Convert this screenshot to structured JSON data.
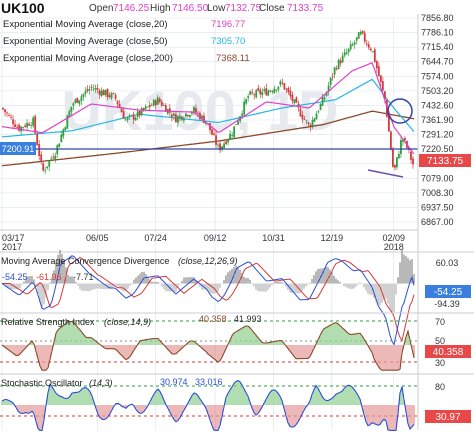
{
  "colors": {
    "up": "#2e9e3e",
    "down": "#d23b3b",
    "ema20": "#e040c8",
    "ema50": "#22b8e0",
    "ema200": "#8b4a2a",
    "macd_line": "#2a4fd8",
    "signal_line": "#d23b3b",
    "rsi_line": "#8b4a2a",
    "stoch_line": "#2a4fd8",
    "grid": "#dde3ea",
    "hline": "#3344aa",
    "badge_blue": "#3a7fe0",
    "badge_red": "#e84848"
  },
  "header": {
    "symbol": "UK100",
    "open_label": "Open",
    "open_value": "7146.25",
    "high_label": "High",
    "high_value": "7146.50",
    "low_label": "Low",
    "low_value": "7132.75",
    "close_label": "Close",
    "close_value": "7133.75"
  },
  "indicators": [
    {
      "label": "Exponential Moving Average (close,20)",
      "value": "7196.77",
      "color": "#e040c8"
    },
    {
      "label": "Exponential Moving Average (close,50)",
      "value": "7305.70",
      "color": "#22b8e0"
    },
    {
      "label": "Exponential Moving Average (close,200)",
      "value": "7368.11",
      "color": "#8b4a2a"
    }
  ],
  "watermark": "UK100, 1D",
  "price_axis_labels": [
    "7856.80",
    "7786.10",
    "7715.40",
    "7644.70",
    "7574.00",
    "7503.20",
    "7432.60",
    "7361.90",
    "7291.20",
    "7220.50",
    "7149.80",
    "7079.00",
    "7008.30",
    "6937.50",
    "6867.00"
  ],
  "date_labels": [
    {
      "text": "03/17",
      "sub": "2017"
    },
    {
      "text": "06/05",
      "sub": ""
    },
    {
      "text": "07/24",
      "sub": ""
    },
    {
      "text": "09/12",
      "sub": ""
    },
    {
      "text": "10/31",
      "sub": ""
    },
    {
      "text": "12/19",
      "sub": ""
    },
    {
      "text": "02/09",
      "sub": "2018"
    }
  ],
  "hline_badge": "7200.91",
  "close_badge": "7133.75",
  "macd": {
    "label": "Moving Average Convergence Divergence",
    "params": "(close,12,26,9)",
    "values": [
      "-54.25",
      "-61.96",
      "-7.71"
    ],
    "axis_labels": [
      "60.03",
      "-94.39"
    ],
    "badge": "-54.25"
  },
  "rsi": {
    "label": "Relative Strength Index",
    "params": "(close,14,9)",
    "values": [
      "40.358",
      "41.993"
    ],
    "axis_labels": [
      "70",
      "50",
      "30"
    ],
    "badge": "40.358"
  },
  "stoch": {
    "label": "Stochastic Oscillator",
    "params": "(14,3)",
    "values": [
      "30.974",
      "33.016"
    ],
    "axis_labels": [
      "80",
      "20"
    ],
    "badge": "30.97"
  },
  "chart_data": {
    "type": "candlestick",
    "title": "UK100",
    "x_range": [
      "2017-03-17",
      "2018-02-26"
    ],
    "y_range": [
      6867.0,
      7856.8
    ],
    "close_path": [
      {
        "date": "2017-03-17",
        "close": 7420
      },
      {
        "date": "2017-03-31",
        "close": 7322
      },
      {
        "date": "2017-04-12",
        "close": 7360
      },
      {
        "date": "2017-04-20",
        "close": 7110
      },
      {
        "date": "2017-05-01",
        "close": 7210
      },
      {
        "date": "2017-05-15",
        "close": 7440
      },
      {
        "date": "2017-05-31",
        "close": 7520
      },
      {
        "date": "2017-06-08",
        "close": 7500
      },
      {
        "date": "2017-06-20",
        "close": 7470
      },
      {
        "date": "2017-06-29",
        "close": 7360
      },
      {
        "date": "2017-07-10",
        "close": 7390
      },
      {
        "date": "2017-07-26",
        "close": 7460
      },
      {
        "date": "2017-08-10",
        "close": 7370
      },
      {
        "date": "2017-08-25",
        "close": 7410
      },
      {
        "date": "2017-09-05",
        "close": 7350
      },
      {
        "date": "2017-09-15",
        "close": 7220
      },
      {
        "date": "2017-09-26",
        "close": 7300
      },
      {
        "date": "2017-10-10",
        "close": 7480
      },
      {
        "date": "2017-10-25",
        "close": 7500
      },
      {
        "date": "2017-11-07",
        "close": 7540
      },
      {
        "date": "2017-11-20",
        "close": 7420
      },
      {
        "date": "2017-11-30",
        "close": 7330
      },
      {
        "date": "2017-12-12",
        "close": 7460
      },
      {
        "date": "2017-12-22",
        "close": 7620
      },
      {
        "date": "2018-01-05",
        "close": 7720
      },
      {
        "date": "2018-01-12",
        "close": 7780
      },
      {
        "date": "2018-01-22",
        "close": 7700
      },
      {
        "date": "2018-02-02",
        "close": 7450
      },
      {
        "date": "2018-02-09",
        "close": 7100
      },
      {
        "date": "2018-02-16",
        "close": 7280
      },
      {
        "date": "2018-02-20",
        "close": 7230
      },
      {
        "date": "2018-02-26",
        "close": 7133.75
      }
    ],
    "ema20_path": [
      {
        "date": "2017-03-17",
        "value": 7330
      },
      {
        "date": "2017-04-20",
        "value": 7300
      },
      {
        "date": "2017-05-31",
        "value": 7440
      },
      {
        "date": "2017-07-10",
        "value": 7410
      },
      {
        "date": "2017-08-25",
        "value": 7400
      },
      {
        "date": "2017-09-15",
        "value": 7300
      },
      {
        "date": "2017-10-25",
        "value": 7450
      },
      {
        "date": "2017-11-30",
        "value": 7420
      },
      {
        "date": "2018-01-05",
        "value": 7600
      },
      {
        "date": "2018-01-22",
        "value": 7640
      },
      {
        "date": "2018-02-09",
        "value": 7330
      },
      {
        "date": "2018-02-26",
        "value": 7196.77
      }
    ],
    "ema50_path": [
      {
        "date": "2017-03-17",
        "value": 7280
      },
      {
        "date": "2017-05-15",
        "value": 7310
      },
      {
        "date": "2017-07-10",
        "value": 7390
      },
      {
        "date": "2017-09-15",
        "value": 7350
      },
      {
        "date": "2017-11-07",
        "value": 7420
      },
      {
        "date": "2017-12-22",
        "value": 7460
      },
      {
        "date": "2018-01-22",
        "value": 7560
      },
      {
        "date": "2018-02-09",
        "value": 7420
      },
      {
        "date": "2018-02-26",
        "value": 7305.7
      }
    ],
    "ema200_path": [
      {
        "date": "2017-03-17",
        "value": 7140
      },
      {
        "date": "2017-06-20",
        "value": 7200
      },
      {
        "date": "2017-09-15",
        "value": 7260
      },
      {
        "date": "2017-12-12",
        "value": 7340
      },
      {
        "date": "2018-01-22",
        "value": 7405
      },
      {
        "date": "2018-02-26",
        "value": 7368.11
      }
    ],
    "horizontal_line": 7200.91,
    "close": 7133.75,
    "macd_range": [
      -94.39,
      60.03
    ],
    "rsi_range": [
      20,
      80
    ],
    "stoch_range": [
      0,
      100
    ]
  }
}
